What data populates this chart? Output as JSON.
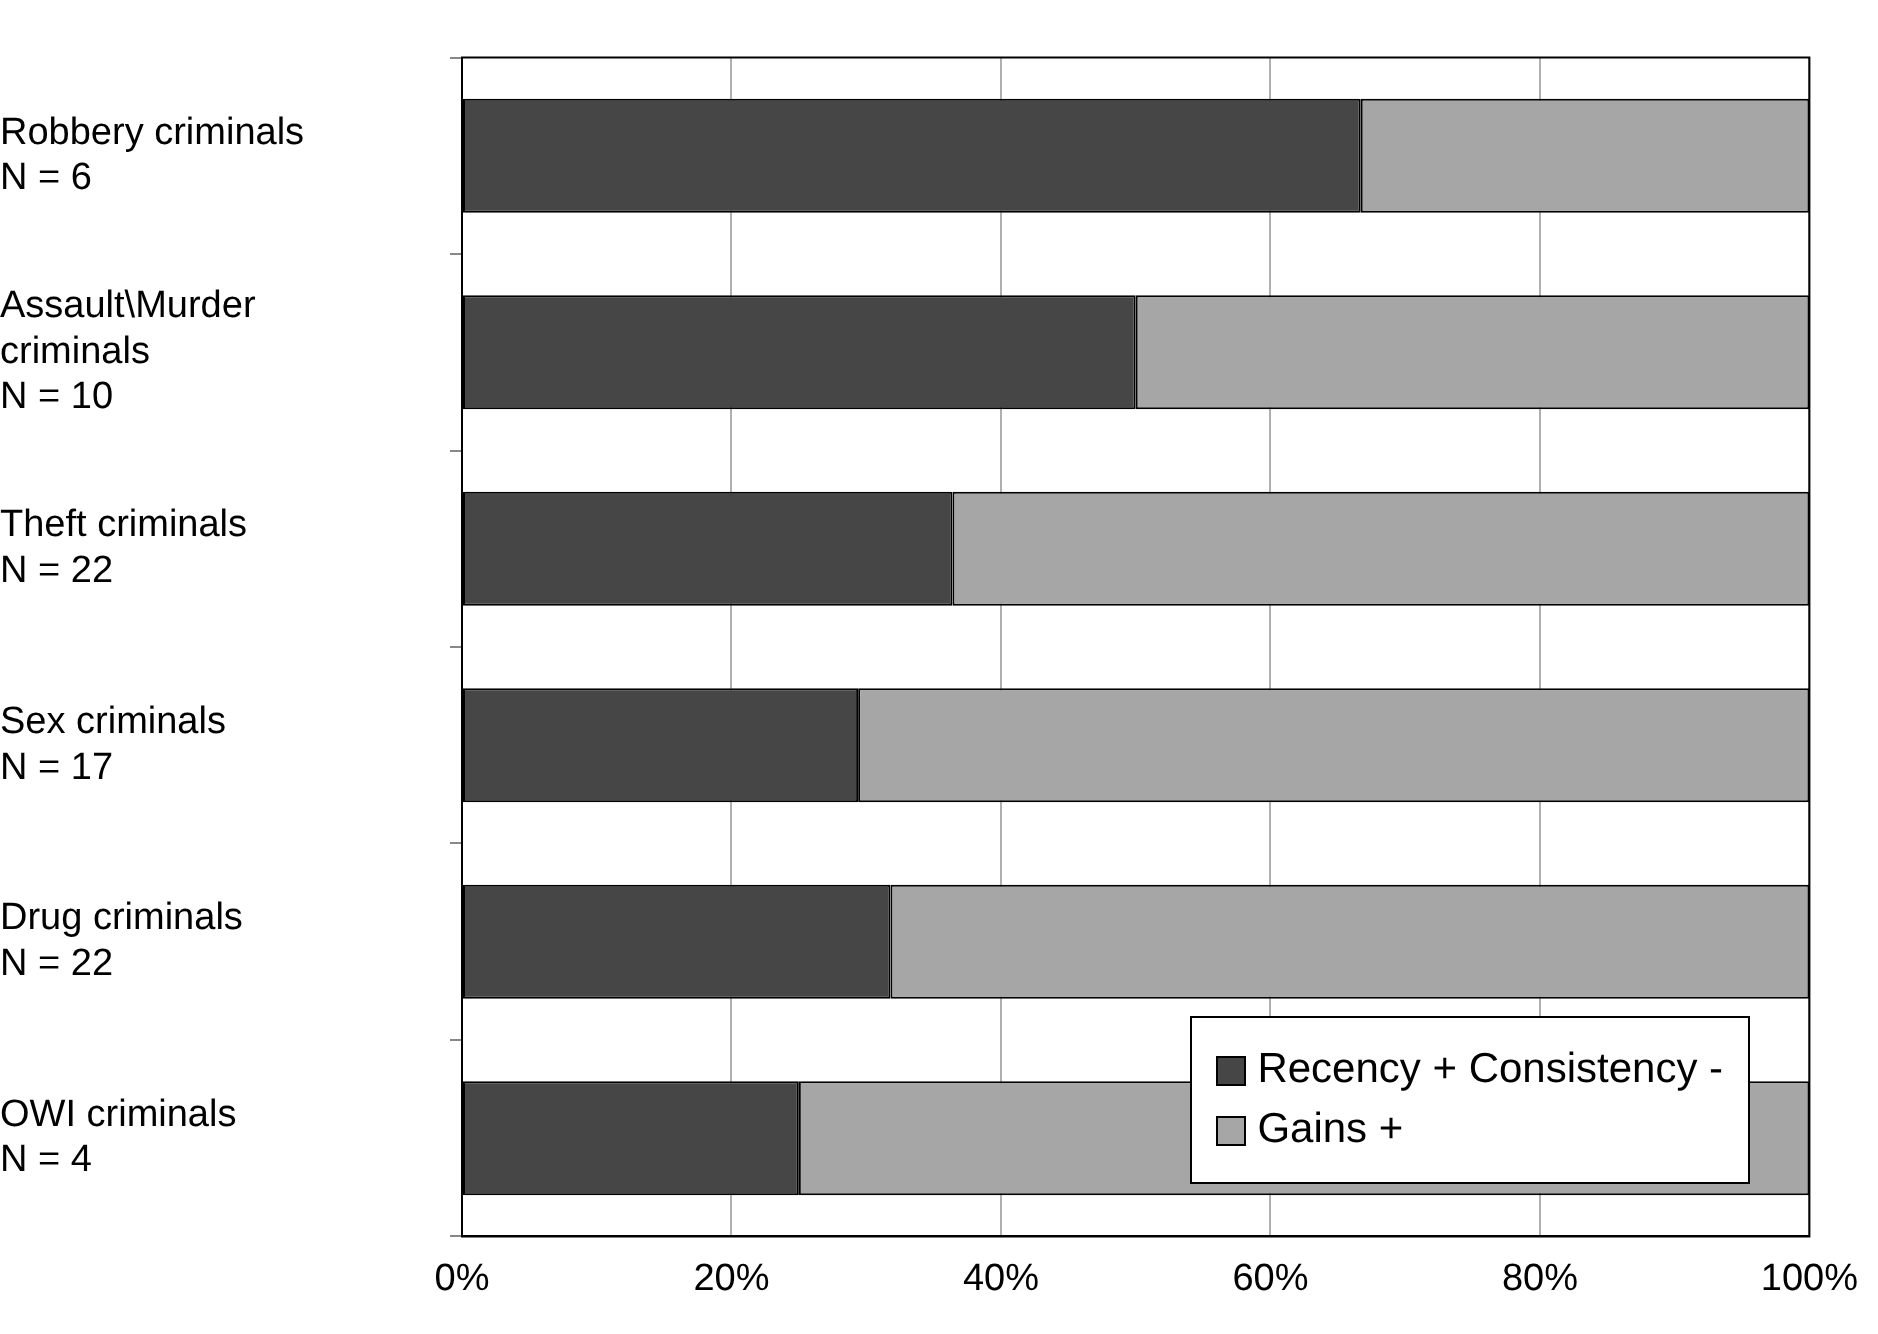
{
  "chart_data": {
    "type": "bar",
    "orientation": "horizontal",
    "stacked": true,
    "categories": [
      "Robbery criminals\nN = 6",
      "Assault\\Murder\ncriminals\nN = 10",
      "Theft criminals\nN = 22",
      "Sex criminals\nN = 17",
      "Drug criminals\nN = 22",
      "OWI criminals\nN = 4"
    ],
    "series": [
      {
        "name": "Recency + Consistency -",
        "color": "#464646",
        "values": [
          66.7,
          50,
          36.4,
          29.4,
          31.8,
          25
        ]
      },
      {
        "name": "Gains +",
        "color": "#a6a6a6",
        "values": [
          33.3,
          50,
          63.6,
          70.6,
          68.2,
          75
        ]
      }
    ],
    "xlim": [
      0,
      100
    ],
    "xticks": [
      {
        "value": 0,
        "label": "0%"
      },
      {
        "value": 20,
        "label": "20%"
      },
      {
        "value": 40,
        "label": "40%"
      },
      {
        "value": 60,
        "label": "60%"
      },
      {
        "value": 80,
        "label": "80%"
      },
      {
        "value": 100,
        "label": "100%"
      }
    ],
    "grid": "x",
    "legend": "bottom right"
  }
}
